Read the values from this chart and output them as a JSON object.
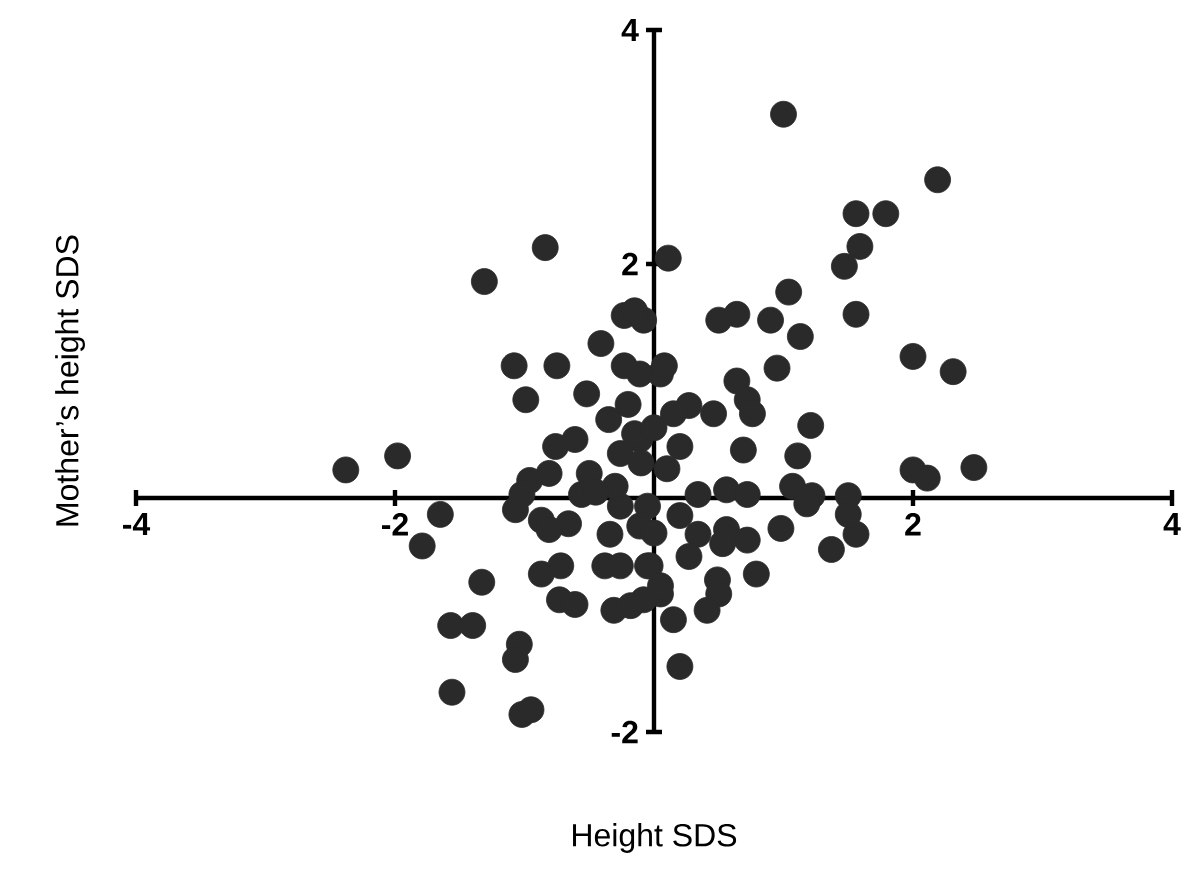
{
  "chart_data": {
    "type": "scatter",
    "xlabel": "Height SDS",
    "ylabel": "Mother’s height SDS",
    "xlim": [
      -4,
      4
    ],
    "ylim": [
      -2,
      4
    ],
    "xticks": [
      -4,
      -2,
      2,
      4
    ],
    "yticks": [
      -2,
      2,
      4
    ],
    "grid": false,
    "marker": "circle",
    "series": [
      {
        "color": "#2a2a2a",
        "x": [
          -0.84,
          -1.31,
          -0.23,
          -0.08,
          -0.41,
          -0.23,
          -1.08,
          -0.75,
          -0.99,
          -0.52,
          -1.98,
          -2.38,
          -0.76,
          -0.61,
          -0.81,
          -0.96,
          -0.5,
          -0.35,
          -0.26,
          -0.11,
          0.05,
          1.0,
          2.19,
          1.56,
          1.79,
          1.59,
          1.47,
          0.11,
          1.04,
          0.5,
          0.64,
          0.9,
          1.13,
          1.56,
          2.0,
          2.31,
          0.08,
          0.95,
          0.64,
          0.72,
          0.76,
          0.46,
          0.27,
          0.15,
          1.21,
          0.69,
          1.11,
          0.2,
          2.0,
          2.11,
          2.47,
          1.07,
          1.22,
          1.5,
          0.34,
          0.56,
          0.72,
          -0.11,
          -0.15,
          0.34,
          0.56,
          0.72,
          0.98,
          0.27,
          0.53,
          1.37,
          1.56,
          1.5,
          0.79,
          0.49,
          0.5,
          0.41,
          -0.03,
          0.05,
          -0.08,
          0.15,
          0.2,
          1.18,
          -1.65,
          -1.79,
          -1.33,
          -1.57,
          -1.4,
          -1.56,
          -1.04,
          -1.07,
          -1.02,
          -0.95,
          -1.07,
          -0.87,
          -0.66,
          -0.81,
          -0.87,
          -0.72,
          -0.73,
          -0.61,
          -0.38,
          -0.26,
          -0.34,
          -0.31,
          -0.18,
          -0.05,
          0.05,
          -1.02,
          -0.56,
          -0.26,
          -0.05,
          -0.11,
          -0.3,
          -0.1,
          0.0,
          -0.2,
          0.1,
          -0.45,
          0.0,
          0.2,
          -0.15
        ],
        "values": [
          2.14,
          1.85,
          1.56,
          1.52,
          1.32,
          1.13,
          1.13,
          1.13,
          0.84,
          0.89,
          0.36,
          0.24,
          0.44,
          0.5,
          0.21,
          0.15,
          0.21,
          0.67,
          0.38,
          0.5,
          1.06,
          3.28,
          2.72,
          2.43,
          2.43,
          2.15,
          1.98,
          2.05,
          1.76,
          1.52,
          1.57,
          1.52,
          1.38,
          1.57,
          1.21,
          1.08,
          1.13,
          1.11,
          1.0,
          0.84,
          0.72,
          0.72,
          0.79,
          0.72,
          0.62,
          0.41,
          0.36,
          0.44,
          0.24,
          0.17,
          0.26,
          0.1,
          0.02,
          0.02,
          0.03,
          0.07,
          0.03,
          1.06,
          0.55,
          -0.31,
          -0.27,
          -0.36,
          -0.26,
          -0.5,
          -0.39,
          -0.44,
          -0.31,
          -0.14,
          -0.65,
          -0.7,
          -0.82,
          -0.96,
          -0.58,
          -0.82,
          -0.87,
          -1.04,
          -1.44,
          -0.05,
          -0.14,
          -0.41,
          -0.72,
          -1.09,
          -1.09,
          -1.66,
          -1.25,
          -1.38,
          -1.85,
          -1.81,
          -0.1,
          -0.19,
          -0.22,
          -0.27,
          -0.65,
          -0.58,
          -0.87,
          -0.91,
          -0.58,
          -0.58,
          -0.31,
          -0.96,
          -0.92,
          -0.58,
          -0.75,
          0.03,
          0.03,
          -0.07,
          -0.07,
          -0.24,
          0.1,
          0.3,
          0.6,
          0.8,
          0.25,
          0.05,
          -0.3,
          -0.15,
          1.6
        ]
      }
    ]
  }
}
